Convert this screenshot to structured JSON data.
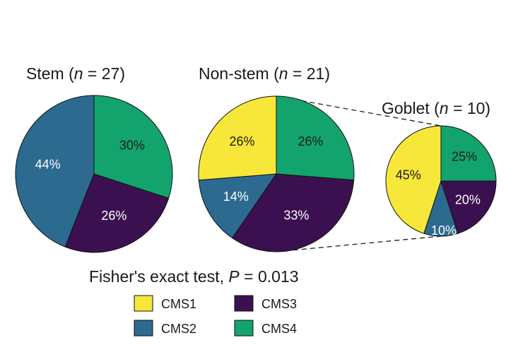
{
  "chart_data": [
    {
      "type": "pie",
      "title_prefix": "Stem (",
      "title_var": "n",
      "title_suffix": " = 27)",
      "labels": [
        "CMS4",
        "CMS3",
        "CMS2"
      ],
      "values": [
        30,
        26,
        44
      ],
      "value_labels": [
        "30%",
        "26%",
        "44%"
      ]
    },
    {
      "type": "pie",
      "title_prefix": "Non-stem (",
      "title_var": "n",
      "title_suffix": " = 21)",
      "labels": [
        "CMS4",
        "CMS3",
        "CMS2",
        "CMS1"
      ],
      "values": [
        26,
        33,
        14,
        26
      ],
      "value_labels": [
        "26%",
        "33%",
        "14%",
        "26%"
      ]
    },
    {
      "type": "pie",
      "title_prefix": "Goblet (",
      "title_var": "n",
      "title_suffix": " = 10)",
      "labels": [
        "CMS4",
        "CMS3",
        "CMS2",
        "CMS1"
      ],
      "values": [
        25,
        20,
        10,
        45
      ],
      "value_labels": [
        "25%",
        "20%",
        "10%",
        "45%"
      ]
    }
  ],
  "stat_test": {
    "prefix": "Fisher's exact test, ",
    "var": "P",
    "suffix": " = 0.013"
  },
  "legend": [
    {
      "label": "CMS1",
      "color": "#f7e73a"
    },
    {
      "label": "CMS2",
      "color": "#2c6b8f"
    },
    {
      "label": "CMS3",
      "color": "#3b1050"
    },
    {
      "label": "CMS4",
      "color": "#13a46d"
    }
  ],
  "colors": {
    "CMS1": "#f7e73a",
    "CMS2": "#2c6b8f",
    "CMS3": "#3b1050",
    "CMS4": "#13a46d"
  },
  "label_colors": {
    "CMS1": "#1a1a1a",
    "CMS2": "#ffffff",
    "CMS3": "#ffffff",
    "CMS4": "#1a1a1a"
  }
}
